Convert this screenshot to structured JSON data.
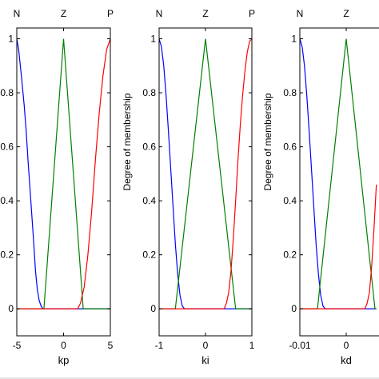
{
  "chart_data": [
    {
      "type": "line",
      "xlabel": "kp",
      "ylabel": "",
      "xlim": [
        -5,
        5
      ],
      "ylim": [
        -0.1,
        1.04
      ],
      "xticks": [
        "-5",
        "0",
        "5"
      ],
      "yticks": [
        "0",
        "0.2",
        "0.4",
        "0.6",
        "0.8",
        "1"
      ],
      "mf_labels": [
        "N",
        "Z",
        "P"
      ],
      "grid": false,
      "series": [
        {
          "name": "N",
          "color": "#0000ff",
          "points": [
            [
              -5,
              1
            ],
            [
              -4.8,
              0.96
            ],
            [
              -4.5,
              0.86
            ],
            [
              -4.2,
              0.75
            ],
            [
              -4,
              0.66
            ],
            [
              -3.8,
              0.55
            ],
            [
              -3.5,
              0.4
            ],
            [
              -3.2,
              0.25
            ],
            [
              -3,
              0.14
            ],
            [
              -2.8,
              0.07
            ],
            [
              -2.6,
              0.03
            ],
            [
              -2.4,
              0.01
            ],
            [
              -2.2,
              0
            ],
            [
              5,
              0
            ]
          ]
        },
        {
          "name": "Z",
          "color": "#008000",
          "points": [
            [
              -5,
              0
            ],
            [
              -2.1,
              0
            ],
            [
              0,
              1
            ],
            [
              2.1,
              0
            ],
            [
              5,
              0
            ]
          ]
        },
        {
          "name": "P",
          "color": "#ff0000",
          "points": [
            [
              -5,
              0
            ],
            [
              1.5,
              0
            ],
            [
              1.8,
              0.02
            ],
            [
              2.2,
              0.08
            ],
            [
              2.6,
              0.2
            ],
            [
              3,
              0.36
            ],
            [
              3.4,
              0.55
            ],
            [
              3.8,
              0.72
            ],
            [
              4.2,
              0.86
            ],
            [
              4.6,
              0.96
            ],
            [
              5,
              1
            ]
          ]
        }
      ]
    },
    {
      "type": "line",
      "xlabel": "ki",
      "ylabel": "Degree of membership",
      "xlim": [
        -1,
        1
      ],
      "ylim": [
        -0.1,
        1.04
      ],
      "xticks": [
        "-1",
        "0",
        "1"
      ],
      "yticks": [
        "0",
        "0.2",
        "0.4",
        "0.6",
        "0.8",
        "1"
      ],
      "mf_labels": [
        "N",
        "Z",
        "P"
      ],
      "grid": false,
      "series": [
        {
          "name": "N",
          "color": "#0000ff",
          "points": [
            [
              -1,
              1
            ],
            [
              -0.95,
              0.97
            ],
            [
              -0.9,
              0.9
            ],
            [
              -0.85,
              0.79
            ],
            [
              -0.8,
              0.66
            ],
            [
              -0.75,
              0.52
            ],
            [
              -0.7,
              0.38
            ],
            [
              -0.65,
              0.24
            ],
            [
              -0.6,
              0.13
            ],
            [
              -0.55,
              0.05
            ],
            [
              -0.5,
              0.01
            ],
            [
              -0.45,
              0
            ],
            [
              1,
              0
            ]
          ]
        },
        {
          "name": "Z",
          "color": "#008000",
          "points": [
            [
              -1,
              0
            ],
            [
              -0.65,
              0
            ],
            [
              0,
              1
            ],
            [
              0.65,
              0
            ],
            [
              1,
              0
            ]
          ]
        },
        {
          "name": "P",
          "color": "#ff0000",
          "points": [
            [
              -1,
              0
            ],
            [
              0.4,
              0
            ],
            [
              0.45,
              0.02
            ],
            [
              0.5,
              0.06
            ],
            [
              0.55,
              0.14
            ],
            [
              0.6,
              0.26
            ],
            [
              0.65,
              0.4
            ],
            [
              0.7,
              0.55
            ],
            [
              0.75,
              0.68
            ],
            [
              0.8,
              0.79
            ],
            [
              0.85,
              0.88
            ],
            [
              0.9,
              0.95
            ],
            [
              0.95,
              0.99
            ],
            [
              1,
              1
            ]
          ]
        }
      ]
    },
    {
      "type": "line",
      "xlabel": "kd",
      "ylabel": "Degree of membership",
      "xlim": [
        -0.01,
        0.01
      ],
      "ylim": [
        -0.1,
        1.04
      ],
      "xticks": [
        "-0.01",
        "0"
      ],
      "yticks": [
        "0",
        "0.2",
        "0.4",
        "0.6",
        "0.8",
        "1"
      ],
      "mf_labels": [
        "N",
        "Z"
      ],
      "grid": false,
      "series": [
        {
          "name": "N",
          "color": "#0000ff",
          "points": [
            [
              -0.01,
              1
            ],
            [
              -0.0095,
              0.97
            ],
            [
              -0.009,
              0.9
            ],
            [
              -0.0085,
              0.79
            ],
            [
              -0.008,
              0.66
            ],
            [
              -0.0075,
              0.52
            ],
            [
              -0.007,
              0.38
            ],
            [
              -0.0065,
              0.24
            ],
            [
              -0.006,
              0.13
            ],
            [
              -0.0055,
              0.05
            ],
            [
              -0.005,
              0.01
            ],
            [
              -0.0045,
              0
            ],
            [
              0.0065,
              0
            ]
          ]
        },
        {
          "name": "Z",
          "color": "#008000",
          "points": [
            [
              -0.01,
              0
            ],
            [
              -0.0062,
              0
            ],
            [
              0,
              1
            ],
            [
              0.0062,
              0
            ],
            [
              0.0065,
              0
            ]
          ]
        },
        {
          "name": "P",
          "color": "#ff0000",
          "points": [
            [
              -0.01,
              0
            ],
            [
              0.004,
              0
            ],
            [
              0.0045,
              0.02
            ],
            [
              0.005,
              0.06
            ],
            [
              0.0055,
              0.16
            ],
            [
              0.006,
              0.3
            ],
            [
              0.0065,
              0.46
            ]
          ]
        }
      ]
    }
  ]
}
